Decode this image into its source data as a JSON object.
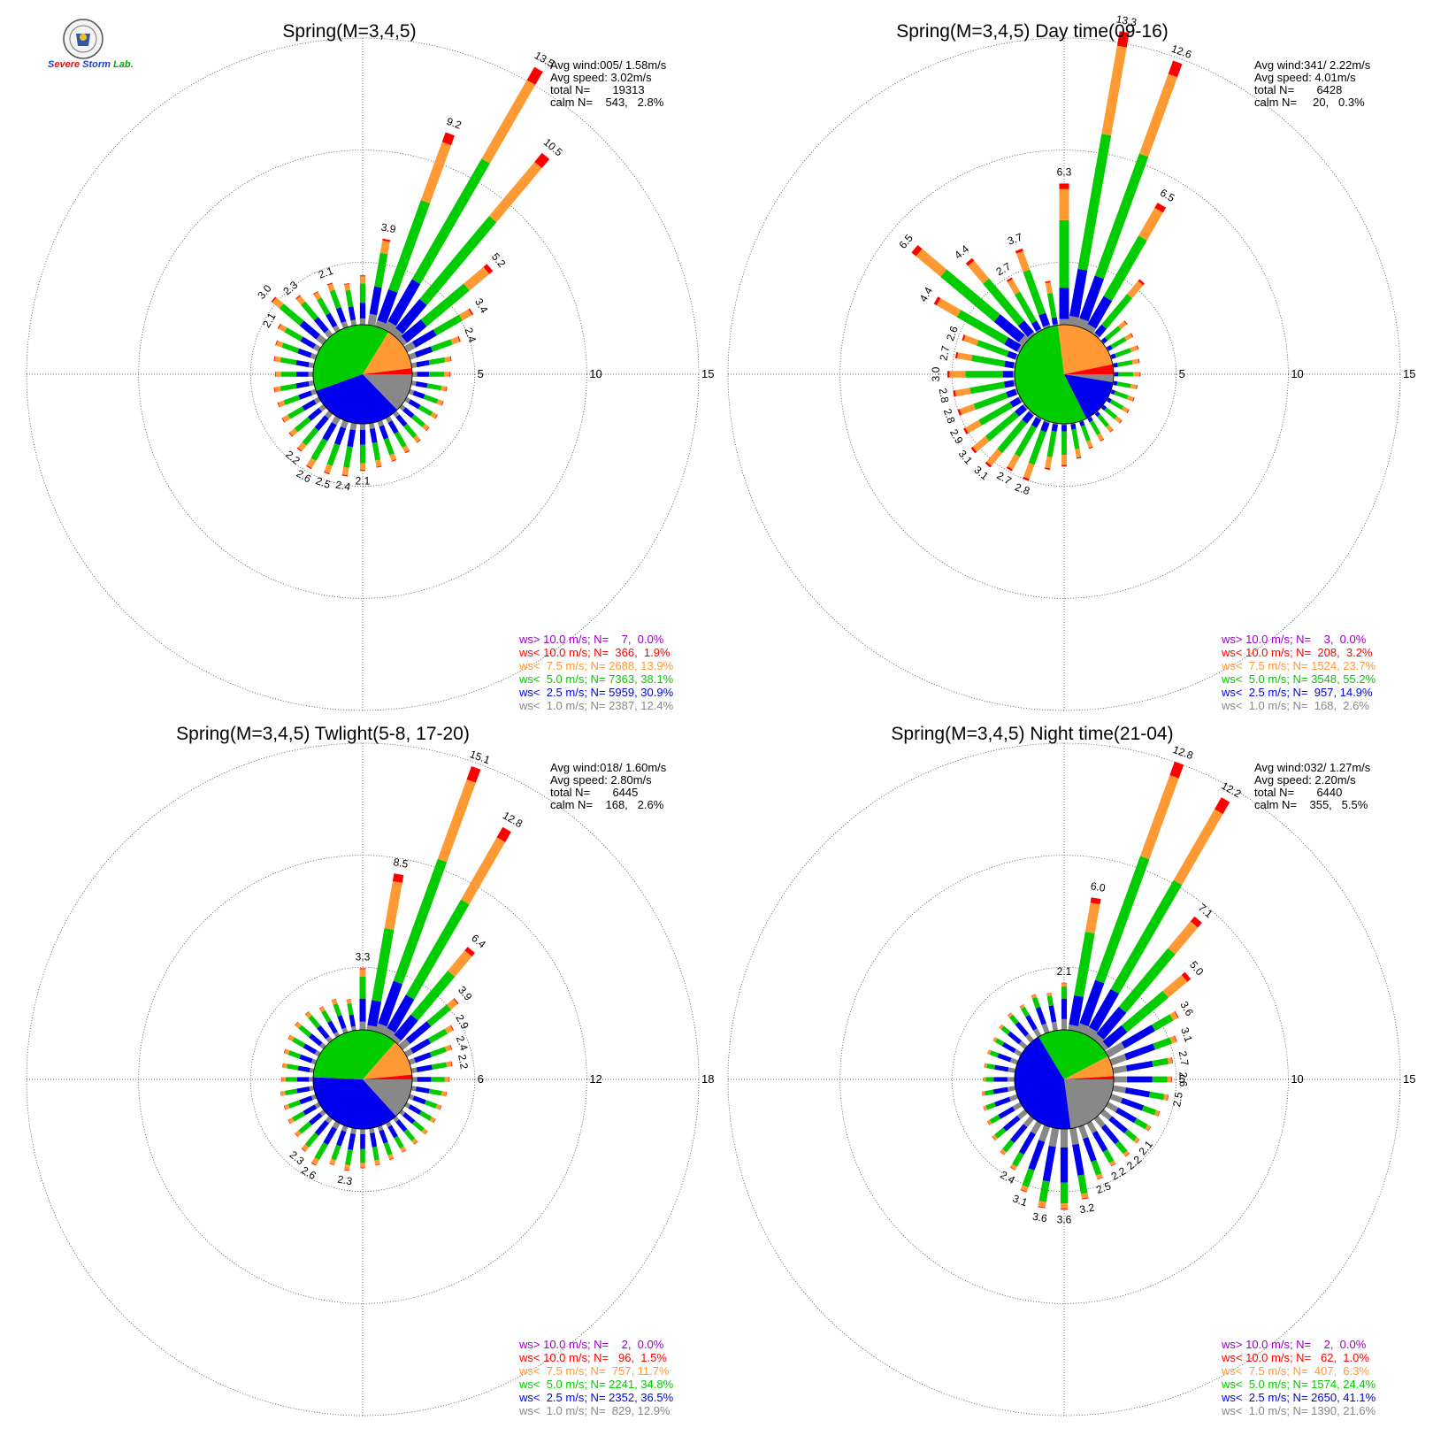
{
  "logo": {
    "text_parts": [
      {
        "t": "S",
        "color": "#1a3fd0"
      },
      {
        "t": "evere",
        "color": "#e01010"
      },
      {
        "t": " Storm",
        "color": "#1a3fd0"
      },
      {
        "t": " Lab.",
        "color": "#10a010"
      }
    ],
    "name": "seal-emblem"
  },
  "speed_classes": [
    {
      "key": "gt10",
      "color": "#9900cc"
    },
    {
      "key": "lt10",
      "color": "#ff0000"
    },
    {
      "key": "lt75",
      "color": "#ff9933"
    },
    {
      "key": "lt5",
      "color": "#00cc00"
    },
    {
      "key": "lt25",
      "color": "#0000ee"
    },
    {
      "key": "lt1",
      "color": "#888888"
    }
  ],
  "chart_data": [
    {
      "type": "windrose",
      "title": "Spring(M=3,4,5)",
      "info": [
        "Avg wind:005/ 1.58m/s",
        "Avg speed: 3.02m/s",
        "total N=       19313",
        "calm N=    543,   2.8%"
      ],
      "rmax": 15,
      "rings": [
        5,
        10,
        15
      ],
      "legend": [
        "ws> 10.0 m/s; N=    7,  0.0%",
        "ws< 10.0 m/s; N=  366,  1.9%",
        "ws<  7.5 m/s; N= 2688, 13.9%",
        "ws<  5.0 m/s; N= 7363, 38.1%",
        "ws<  2.5 m/s; N= 5959, 30.9%",
        "ws<  1.0 m/s; N= 2387, 12.4%"
      ],
      "center_pie": [
        12.4,
        30.9,
        38.1,
        13.9,
        1.9,
        0.0
      ],
      "directions": [
        {
          "dir": 0,
          "total": 2.2
        },
        {
          "dir": 10,
          "total": 3.9,
          "label": "3.9"
        },
        {
          "dir": 20,
          "total": 9.2,
          "label": "9.2"
        },
        {
          "dir": 30,
          "total": 13.5,
          "label": "13.5"
        },
        {
          "dir": 40,
          "total": 10.5,
          "label": "10.5"
        },
        {
          "dir": 50,
          "total": 5.2,
          "label": "5.2"
        },
        {
          "dir": 60,
          "total": 3.4,
          "label": "3.4"
        },
        {
          "dir": 70,
          "total": 2.4,
          "label": "2.4"
        },
        {
          "dir": 80,
          "total": 1.8
        },
        {
          "dir": 90,
          "total": 1.7
        },
        {
          "dir": 100,
          "total": 1.6
        },
        {
          "dir": 110,
          "total": 1.6
        },
        {
          "dir": 120,
          "total": 1.6
        },
        {
          "dir": 130,
          "total": 1.6
        },
        {
          "dir": 140,
          "total": 1.7
        },
        {
          "dir": 150,
          "total": 1.8
        },
        {
          "dir": 160,
          "total": 1.9
        },
        {
          "dir": 170,
          "total": 2.0
        },
        {
          "dir": 180,
          "total": 2.1,
          "label": "2.1"
        },
        {
          "dir": 190,
          "total": 2.4,
          "label": "2.4"
        },
        {
          "dir": 200,
          "total": 2.5,
          "label": "2.5"
        },
        {
          "dir": 210,
          "total": 2.6,
          "label": "2.6"
        },
        {
          "dir": 220,
          "total": 2.2,
          "label": "2.2"
        },
        {
          "dir": 230,
          "total": 2.0
        },
        {
          "dir": 240,
          "total": 1.9
        },
        {
          "dir": 250,
          "total": 1.8
        },
        {
          "dir": 260,
          "total": 1.8
        },
        {
          "dir": 270,
          "total": 1.7
        },
        {
          "dir": 280,
          "total": 1.8
        },
        {
          "dir": 290,
          "total": 1.9
        },
        {
          "dir": 300,
          "total": 2.1,
          "label": "2.1"
        },
        {
          "dir": 310,
          "total": 3.0,
          "label": "3.0"
        },
        {
          "dir": 320,
          "total": 2.3,
          "label": "2.3"
        },
        {
          "dir": 330,
          "total": 2.0
        },
        {
          "dir": 340,
          "total": 2.1,
          "label": "2.1"
        },
        {
          "dir": 350,
          "total": 1.9
        }
      ]
    },
    {
      "type": "windrose",
      "title": "Spring(M=3,4,5) Day time(09-16)",
      "info": [
        "Avg wind:341/ 2.22m/s",
        "Avg speed: 4.01m/s",
        "total N=       6428",
        "calm N=     20,   0.3%"
      ],
      "rmax": 15,
      "rings": [
        5,
        10,
        15
      ],
      "legend": [
        "ws> 10.0 m/s; N=    3,  0.0%",
        "ws< 10.0 m/s; N=  208,  3.2%",
        "ws<  7.5 m/s; N= 1524, 23.7%",
        "ws<  5.0 m/s; N= 3548, 55.2%",
        "ws<  2.5 m/s; N=  957, 14.9%",
        "ws<  1.0 m/s; N=  168,  2.6%"
      ],
      "center_pie": [
        2.6,
        14.9,
        55.2,
        23.7,
        3.2,
        0.0
      ],
      "directions": [
        {
          "dir": 0,
          "total": 6.3,
          "label": "6.3"
        },
        {
          "dir": 10,
          "total": 13.3,
          "label": "13.3"
        },
        {
          "dir": 20,
          "total": 12.6,
          "label": "12.6"
        },
        {
          "dir": 30,
          "total": 6.5,
          "label": "6.5"
        },
        {
          "dir": 40,
          "total": 3.2
        },
        {
          "dir": 50,
          "total": 1.4
        },
        {
          "dir": 60,
          "total": 1.3
        },
        {
          "dir": 70,
          "total": 1.3
        },
        {
          "dir": 80,
          "total": 1.2
        },
        {
          "dir": 90,
          "total": 1.2
        },
        {
          "dir": 100,
          "total": 1.1
        },
        {
          "dir": 110,
          "total": 1.1
        },
        {
          "dir": 120,
          "total": 1.1
        },
        {
          "dir": 130,
          "total": 1.1
        },
        {
          "dir": 140,
          "total": 1.1
        },
        {
          "dir": 150,
          "total": 1.2
        },
        {
          "dir": 160,
          "total": 1.3
        },
        {
          "dir": 170,
          "total": 1.6
        },
        {
          "dir": 180,
          "total": 1.9
        },
        {
          "dir": 190,
          "total": 2.1
        },
        {
          "dir": 200,
          "total": 2.8,
          "label": "2.8"
        },
        {
          "dir": 210,
          "total": 2.7,
          "label": "2.7"
        },
        {
          "dir": 220,
          "total": 3.1,
          "label": "3.1"
        },
        {
          "dir": 230,
          "total": 3.1,
          "label": "3.1"
        },
        {
          "dir": 240,
          "total": 2.9,
          "label": "2.9"
        },
        {
          "dir": 250,
          "total": 2.8,
          "label": "2.8"
        },
        {
          "dir": 260,
          "total": 2.8,
          "label": "2.8"
        },
        {
          "dir": 270,
          "total": 3.0,
          "label": "3.0"
        },
        {
          "dir": 280,
          "total": 2.7,
          "label": "2.7"
        },
        {
          "dir": 290,
          "total": 2.6,
          "label": "2.6"
        },
        {
          "dir": 300,
          "total": 4.4,
          "label": "4.4"
        },
        {
          "dir": 310,
          "total": 6.5,
          "label": "6.5"
        },
        {
          "dir": 320,
          "total": 4.4,
          "label": "4.4"
        },
        {
          "dir": 330,
          "total": 2.7,
          "label": "2.7"
        },
        {
          "dir": 340,
          "total": 3.7,
          "label": "3.7"
        },
        {
          "dir": 350,
          "total": 2.0
        }
      ]
    },
    {
      "type": "windrose",
      "title": "Spring(M=3,4,5) Twlight(5-8, 17-20)",
      "info": [
        "Avg wind:018/ 1.60m/s",
        "Avg speed: 2.80m/s",
        "total N=       6445",
        "calm N=    168,   2.6%"
      ],
      "rmax": 18,
      "rings": [
        6,
        12,
        18
      ],
      "legend": [
        "ws> 10.0 m/s; N=    2,  0.0%",
        "ws< 10.0 m/s; N=   96,  1.5%",
        "ws<  7.5 m/s; N=  757, 11.7%",
        "ws<  5.0 m/s; N= 2241, 34.8%",
        "ws<  2.5 m/s; N= 2352, 36.5%",
        "ws<  1.0 m/s; N=  829, 12.9%"
      ],
      "center_pie": [
        12.9,
        36.5,
        34.8,
        11.7,
        1.5,
        0.0
      ],
      "directions": [
        {
          "dir": 0,
          "total": 3.3,
          "label": "3.3"
        },
        {
          "dir": 10,
          "total": 8.5,
          "label": "8.5"
        },
        {
          "dir": 20,
          "total": 15.1,
          "label": "15.1"
        },
        {
          "dir": 30,
          "total": 12.8,
          "label": "12.8"
        },
        {
          "dir": 40,
          "total": 6.4,
          "label": "6.4"
        },
        {
          "dir": 50,
          "total": 3.9,
          "label": "3.9"
        },
        {
          "dir": 60,
          "total": 2.9,
          "label": "2.9"
        },
        {
          "dir": 70,
          "total": 2.4,
          "label": "2.4"
        },
        {
          "dir": 80,
          "total": 2.2,
          "label": "2.2"
        },
        {
          "dir": 90,
          "total": 2.0
        },
        {
          "dir": 100,
          "total": 1.9
        },
        {
          "dir": 110,
          "total": 1.8
        },
        {
          "dir": 120,
          "total": 1.8
        },
        {
          "dir": 130,
          "total": 1.8
        },
        {
          "dir": 140,
          "total": 1.8
        },
        {
          "dir": 150,
          "total": 1.8
        },
        {
          "dir": 160,
          "total": 1.9
        },
        {
          "dir": 170,
          "total": 2.0
        },
        {
          "dir": 180,
          "total": 2.1
        },
        {
          "dir": 190,
          "total": 2.3,
          "label": "2.3"
        },
        {
          "dir": 200,
          "total": 2.2
        },
        {
          "dir": 210,
          "total": 2.6,
          "label": "2.6"
        },
        {
          "dir": 220,
          "total": 2.3,
          "label": "2.3"
        },
        {
          "dir": 230,
          "total": 2.0
        },
        {
          "dir": 240,
          "total": 1.9
        },
        {
          "dir": 250,
          "total": 1.8
        },
        {
          "dir": 260,
          "total": 1.8
        },
        {
          "dir": 270,
          "total": 1.7
        },
        {
          "dir": 280,
          "total": 1.7
        },
        {
          "dir": 290,
          "total": 1.8
        },
        {
          "dir": 300,
          "total": 1.9
        },
        {
          "dir": 310,
          "total": 2.0
        },
        {
          "dir": 320,
          "total": 2.0
        },
        {
          "dir": 330,
          "total": 1.8
        },
        {
          "dir": 340,
          "total": 1.9
        },
        {
          "dir": 350,
          "total": 1.7
        }
      ]
    },
    {
      "type": "windrose",
      "title": "Spring(M=3,4,5) Night time(21-04)",
      "info": [
        "Avg wind:032/ 1.27m/s",
        "Avg speed: 2.20m/s",
        "total N=       6440",
        "calm N=    355,   5.5%"
      ],
      "rmax": 15,
      "rings": [
        5,
        10,
        15
      ],
      "legend": [
        "ws> 10.0 m/s; N=    2,  0.0%",
        "ws< 10.0 m/s; N=   62,  1.0%",
        "ws<  7.5 m/s; N=  407,  6.3%",
        "ws<  5.0 m/s; N= 1574, 24.4%",
        "ws<  2.5 m/s; N= 2650, 41.1%",
        "ws<  1.0 m/s; N= 1390, 21.6%"
      ],
      "center_pie": [
        21.6,
        41.1,
        24.4,
        6.3,
        1.0,
        0.0
      ],
      "directions": [
        {
          "dir": 0,
          "total": 2.1,
          "label": "2.1"
        },
        {
          "dir": 10,
          "total": 6.0,
          "label": "6.0"
        },
        {
          "dir": 20,
          "total": 12.8,
          "label": "12.8"
        },
        {
          "dir": 30,
          "total": 12.2,
          "label": "12.2"
        },
        {
          "dir": 40,
          "total": 7.1,
          "label": "7.1"
        },
        {
          "dir": 50,
          "total": 5.0,
          "label": "5.0"
        },
        {
          "dir": 60,
          "total": 3.6,
          "label": "3.6"
        },
        {
          "dir": 70,
          "total": 3.1,
          "label": "3.1"
        },
        {
          "dir": 80,
          "total": 2.7,
          "label": "2.7"
        },
        {
          "dir": 90,
          "total": 2.6,
          "label": "2.6"
        },
        {
          "dir": 100,
          "total": 2.5,
          "label": "2.5"
        },
        {
          "dir": 110,
          "total": 2.3
        },
        {
          "dir": 120,
          "total": 2.2
        },
        {
          "dir": 130,
          "total": 2.1,
          "label": "2.1"
        },
        {
          "dir": 140,
          "total": 2.2,
          "label": "2.2"
        },
        {
          "dir": 150,
          "total": 2.2,
          "label": "2.2"
        },
        {
          "dir": 160,
          "total": 2.5,
          "label": "2.5"
        },
        {
          "dir": 170,
          "total": 3.2,
          "label": "3.2"
        },
        {
          "dir": 180,
          "total": 3.6,
          "label": "3.6"
        },
        {
          "dir": 190,
          "total": 3.6,
          "label": "3.6"
        },
        {
          "dir": 200,
          "total": 3.1,
          "label": "3.1"
        },
        {
          "dir": 210,
          "total": 2.4,
          "label": "2.4"
        },
        {
          "dir": 220,
          "total": 2.1
        },
        {
          "dir": 230,
          "total": 1.9
        },
        {
          "dir": 240,
          "total": 1.7
        },
        {
          "dir": 250,
          "total": 1.6
        },
        {
          "dir": 260,
          "total": 1.5
        },
        {
          "dir": 270,
          "total": 1.4
        },
        {
          "dir": 280,
          "total": 1.4
        },
        {
          "dir": 290,
          "total": 1.4
        },
        {
          "dir": 300,
          "total": 1.4
        },
        {
          "dir": 310,
          "total": 1.5
        },
        {
          "dir": 320,
          "total": 1.6
        },
        {
          "dir": 330,
          "total": 1.6
        },
        {
          "dir": 340,
          "total": 1.8
        },
        {
          "dir": 350,
          "total": 1.7
        }
      ]
    }
  ]
}
